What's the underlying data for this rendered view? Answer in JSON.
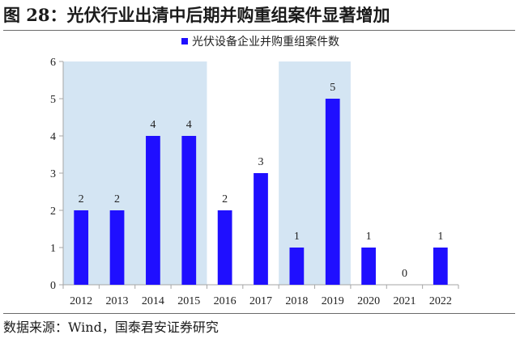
{
  "figure": {
    "title": "图 28：光伏行业出清中后期并购重组案件显著增加",
    "source": "数据来源：Wind，国泰君安证券研究"
  },
  "chart_data": {
    "type": "bar",
    "categories": [
      "2012",
      "2013",
      "2014",
      "2015",
      "2016",
      "2017",
      "2018",
      "2019",
      "2020",
      "2021",
      "2022"
    ],
    "series": [
      {
        "name": "光伏设备企业并购重组案件数",
        "values": [
          2,
          2,
          4,
          4,
          2,
          3,
          1,
          5,
          1,
          0,
          1
        ]
      }
    ],
    "yticks": [
      0,
      1,
      2,
      3,
      4,
      5,
      6
    ],
    "ylim": [
      0,
      6
    ],
    "grid": false,
    "legend": "top-center",
    "data_labels": true,
    "highlighted_ranges": [
      [
        "2012",
        "2015"
      ],
      [
        "2018",
        "2019"
      ]
    ],
    "colors": {
      "bar": "#1f0fff",
      "highlight": "#d4e5f3",
      "axis": "#a6a6a6",
      "text": "#222222"
    }
  }
}
